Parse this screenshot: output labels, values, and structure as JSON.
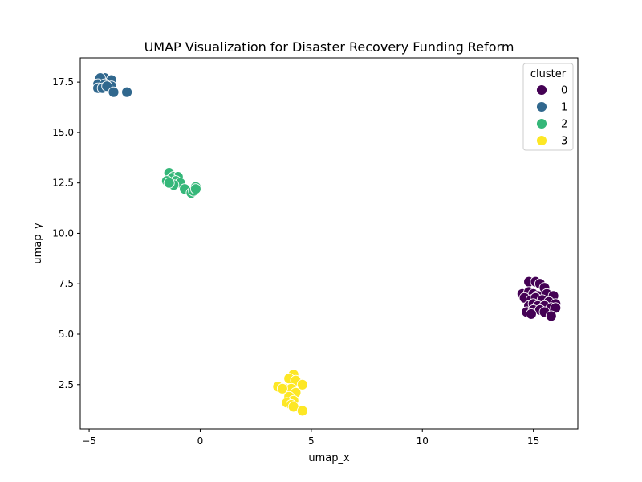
{
  "chart_data": {
    "type": "scatter",
    "title": "UMAP Visualization for Disaster Recovery Funding Reform",
    "xlabel": "umap_x",
    "ylabel": "umap_y",
    "xlim": [
      -5.4,
      17.0
    ],
    "ylim": [
      0.3,
      18.7
    ],
    "x_ticks": [
      -5,
      0,
      5,
      10,
      15
    ],
    "x_tick_labels": [
      "−5",
      "0",
      "5",
      "10",
      "15"
    ],
    "y_ticks": [
      2.5,
      5.0,
      7.5,
      10.0,
      12.5,
      15.0,
      17.5
    ],
    "y_tick_labels": [
      "2.5",
      "5.0",
      "7.5",
      "10.0",
      "12.5",
      "15.0",
      "17.5"
    ],
    "grid": false,
    "legend": {
      "title": "cluster",
      "placement": "upper-right"
    },
    "series": [
      {
        "name": "0",
        "color": "#440154",
        "points": [
          [
            14.8,
            7.6
          ],
          [
            15.1,
            7.6
          ],
          [
            15.3,
            7.5
          ],
          [
            15.5,
            7.3
          ],
          [
            14.5,
            7.0
          ],
          [
            14.8,
            7.1
          ],
          [
            15.0,
            7.0
          ],
          [
            15.2,
            6.9
          ],
          [
            15.6,
            7.0
          ],
          [
            15.9,
            6.9
          ],
          [
            14.6,
            6.8
          ],
          [
            14.9,
            6.7
          ],
          [
            15.1,
            6.8
          ],
          [
            15.4,
            6.7
          ],
          [
            15.7,
            6.6
          ],
          [
            16.0,
            6.5
          ],
          [
            14.8,
            6.4
          ],
          [
            15.0,
            6.5
          ],
          [
            15.2,
            6.4
          ],
          [
            15.5,
            6.4
          ],
          [
            15.8,
            6.3
          ],
          [
            16.0,
            6.3
          ],
          [
            14.7,
            6.1
          ],
          [
            15.0,
            6.2
          ],
          [
            15.3,
            6.2
          ],
          [
            15.5,
            6.1
          ],
          [
            15.8,
            5.9
          ],
          [
            14.9,
            6.0
          ]
        ]
      },
      {
        "name": "1",
        "color": "#31688e",
        "points": [
          [
            -4.3,
            17.7
          ],
          [
            -4.5,
            17.7
          ],
          [
            -4.0,
            17.6
          ],
          [
            -4.6,
            17.4
          ],
          [
            -4.3,
            17.4
          ],
          [
            -4.0,
            17.3
          ],
          [
            -4.6,
            17.2
          ],
          [
            -4.4,
            17.2
          ],
          [
            -4.2,
            17.3
          ],
          [
            -3.9,
            17.0
          ],
          [
            -3.3,
            17.0
          ]
        ]
      },
      {
        "name": "2",
        "color": "#35b779",
        "points": [
          [
            -1.4,
            13.0
          ],
          [
            -1.2,
            12.8
          ],
          [
            -1.0,
            12.8
          ],
          [
            -1.3,
            12.7
          ],
          [
            -1.1,
            12.6
          ],
          [
            -0.9,
            12.5
          ],
          [
            -1.5,
            12.6
          ],
          [
            -1.2,
            12.4
          ],
          [
            -1.4,
            12.5
          ],
          [
            -0.7,
            12.2
          ],
          [
            -0.4,
            12.0
          ],
          [
            -0.2,
            12.3
          ],
          [
            -0.3,
            12.1
          ],
          [
            -0.2,
            12.2
          ]
        ]
      },
      {
        "name": "3",
        "color": "#fde725",
        "points": [
          [
            4.2,
            3.0
          ],
          [
            4.0,
            2.8
          ],
          [
            4.3,
            2.7
          ],
          [
            4.6,
            2.5
          ],
          [
            3.5,
            2.4
          ],
          [
            3.8,
            2.3
          ],
          [
            4.1,
            2.3
          ],
          [
            4.3,
            2.1
          ],
          [
            3.7,
            2.3
          ],
          [
            4.0,
            1.9
          ],
          [
            4.2,
            1.7
          ],
          [
            3.9,
            1.6
          ],
          [
            4.1,
            1.5
          ],
          [
            4.2,
            1.4
          ],
          [
            4.6,
            1.2
          ]
        ]
      }
    ]
  }
}
